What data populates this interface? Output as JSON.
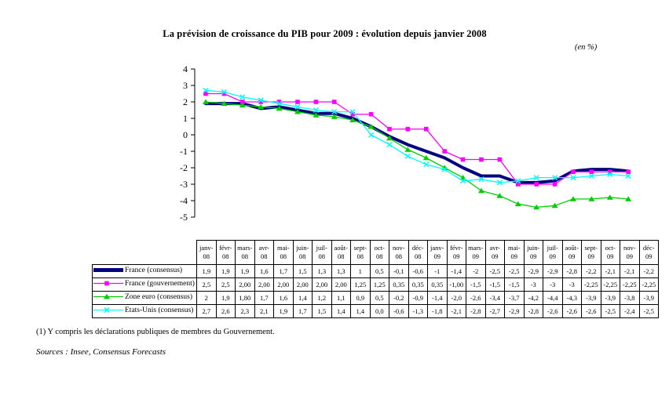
{
  "title": "La prévision de croissance du PIB pour 2009 : évolution depuis janvier 2008",
  "unit_label": "(en %)",
  "footnote": "(1) Y compris les déclarations publiques de membres du Gouvernement.",
  "sources": "Sources : Insee, Consensus Forecasts",
  "chart_data": {
    "type": "line",
    "title": "La prévision de croissance du PIB pour 2009 : évolution depuis janvier 2008",
    "xlabel": "",
    "ylabel": "(en %)",
    "ylim": [
      -5,
      4
    ],
    "yticks": [
      4,
      3,
      2,
      1,
      0,
      -1,
      -2,
      -3,
      -4,
      -5
    ],
    "grid": false,
    "legend_position": "table-left",
    "categories": [
      "janv-08",
      "févr-08",
      "mars-08",
      "avr-08",
      "mai-08",
      "juin-08",
      "juil-08",
      "août-08",
      "sept-08",
      "oct-08",
      "nov-08",
      "déc-08",
      "janv-09",
      "févr-09",
      "mars-09",
      "avr-09",
      "mai-09",
      "juin-09",
      "juil-09",
      "août-09",
      "sept-09",
      "oct-09",
      "nov-09",
      "déc-09"
    ],
    "series": [
      {
        "name": "France (consensus)",
        "color": "#000080",
        "marker": "none",
        "line_width": 4,
        "values": [
          1.9,
          1.9,
          1.9,
          1.6,
          1.7,
          1.5,
          1.3,
          1.3,
          1,
          0.5,
          -0.1,
          -0.6,
          -1,
          -1.4,
          -2,
          -2.5,
          -2.5,
          -2.9,
          -2.9,
          -2.8,
          -2.2,
          -2.1,
          -2.1,
          -2.2
        ],
        "values_display": [
          "1,9",
          "1,9",
          "1,9",
          "1,6",
          "1,7",
          "1,5",
          "1,3",
          "1,3",
          "1",
          "0,5",
          "-0,1",
          "-0,6",
          "-1",
          "-1,4",
          "-2",
          "-2,5",
          "-2,5",
          "-2,9",
          "-2,9",
          "-2,8",
          "-2,2",
          "-2,1",
          "-2,1",
          "-2,2"
        ]
      },
      {
        "name": "France (gouvernement) (1)",
        "color": "#FF00FF",
        "marker": "square",
        "line_width": 1.3,
        "values": [
          2.5,
          2.5,
          2.0,
          2.0,
          2.0,
          2.0,
          2.0,
          2.0,
          1.25,
          1.25,
          0.35,
          0.35,
          0.35,
          -1.0,
          -1.5,
          -1.5,
          -1.5,
          -3,
          -3,
          -3,
          -2.25,
          -2.25,
          -2.25,
          -2.25
        ],
        "values_display": [
          "2,5",
          "2,5",
          "2,00",
          "2,00",
          "2,00",
          "2,00",
          "2,00",
          "2,00",
          "1,25",
          "1,25",
          "0,35",
          "0,35",
          "0,35",
          "-1,00",
          "-1,5",
          "-1,5",
          "-1,5",
          "-3",
          "-3",
          "-3",
          "-2,25",
          "-2,25",
          "-2,25",
          "-2,25"
        ]
      },
      {
        "name": "Zone euro (consensus)",
        "color": "#00CC00",
        "marker": "triangle",
        "line_width": 1.3,
        "values": [
          2,
          1.9,
          1.8,
          1.7,
          1.6,
          1.4,
          1.2,
          1.1,
          0.9,
          0.5,
          -0.2,
          -0.9,
          -1.4,
          -2.0,
          -2.6,
          -3.4,
          -3.7,
          -4.2,
          -4.4,
          -4.3,
          -3.9,
          -3.9,
          -3.8,
          -3.9
        ],
        "values_display": [
          "2",
          "1,9",
          "1,80",
          "1,7",
          "1,6",
          "1,4",
          "1,2",
          "1,1",
          "0,9",
          "0,5",
          "-0,2",
          "-0,9",
          "-1,4",
          "-2,0",
          "-2,6",
          "-3,4",
          "-3,7",
          "-4,2",
          "-4,4",
          "-4,3",
          "-3,9",
          "-3,9",
          "-3,8",
          "-3,9"
        ]
      },
      {
        "name": "Etats-Unis (consensus)",
        "color": "#00FFFF",
        "marker": "x",
        "line_width": 1.3,
        "values": [
          2.7,
          2.6,
          2.3,
          2.1,
          1.9,
          1.7,
          1.5,
          1.4,
          1.4,
          0.0,
          -0.6,
          -1.3,
          -1.8,
          -2.1,
          -2.8,
          -2.7,
          -2.9,
          -2.8,
          -2.6,
          -2.6,
          -2.6,
          -2.5,
          -2.4,
          -2.5
        ],
        "values_display": [
          "2,7",
          "2,6",
          "2,3",
          "2,1",
          "1,9",
          "1,7",
          "1,5",
          "1,4",
          "1,4",
          "0,0",
          "-0,6",
          "-1,3",
          "-1,8",
          "-2,1",
          "-2,8",
          "-2,7",
          "-2,9",
          "-2,8",
          "-2,6",
          "-2,6",
          "-2,6",
          "-2,5",
          "-2,4",
          "-2,5"
        ]
      }
    ]
  }
}
